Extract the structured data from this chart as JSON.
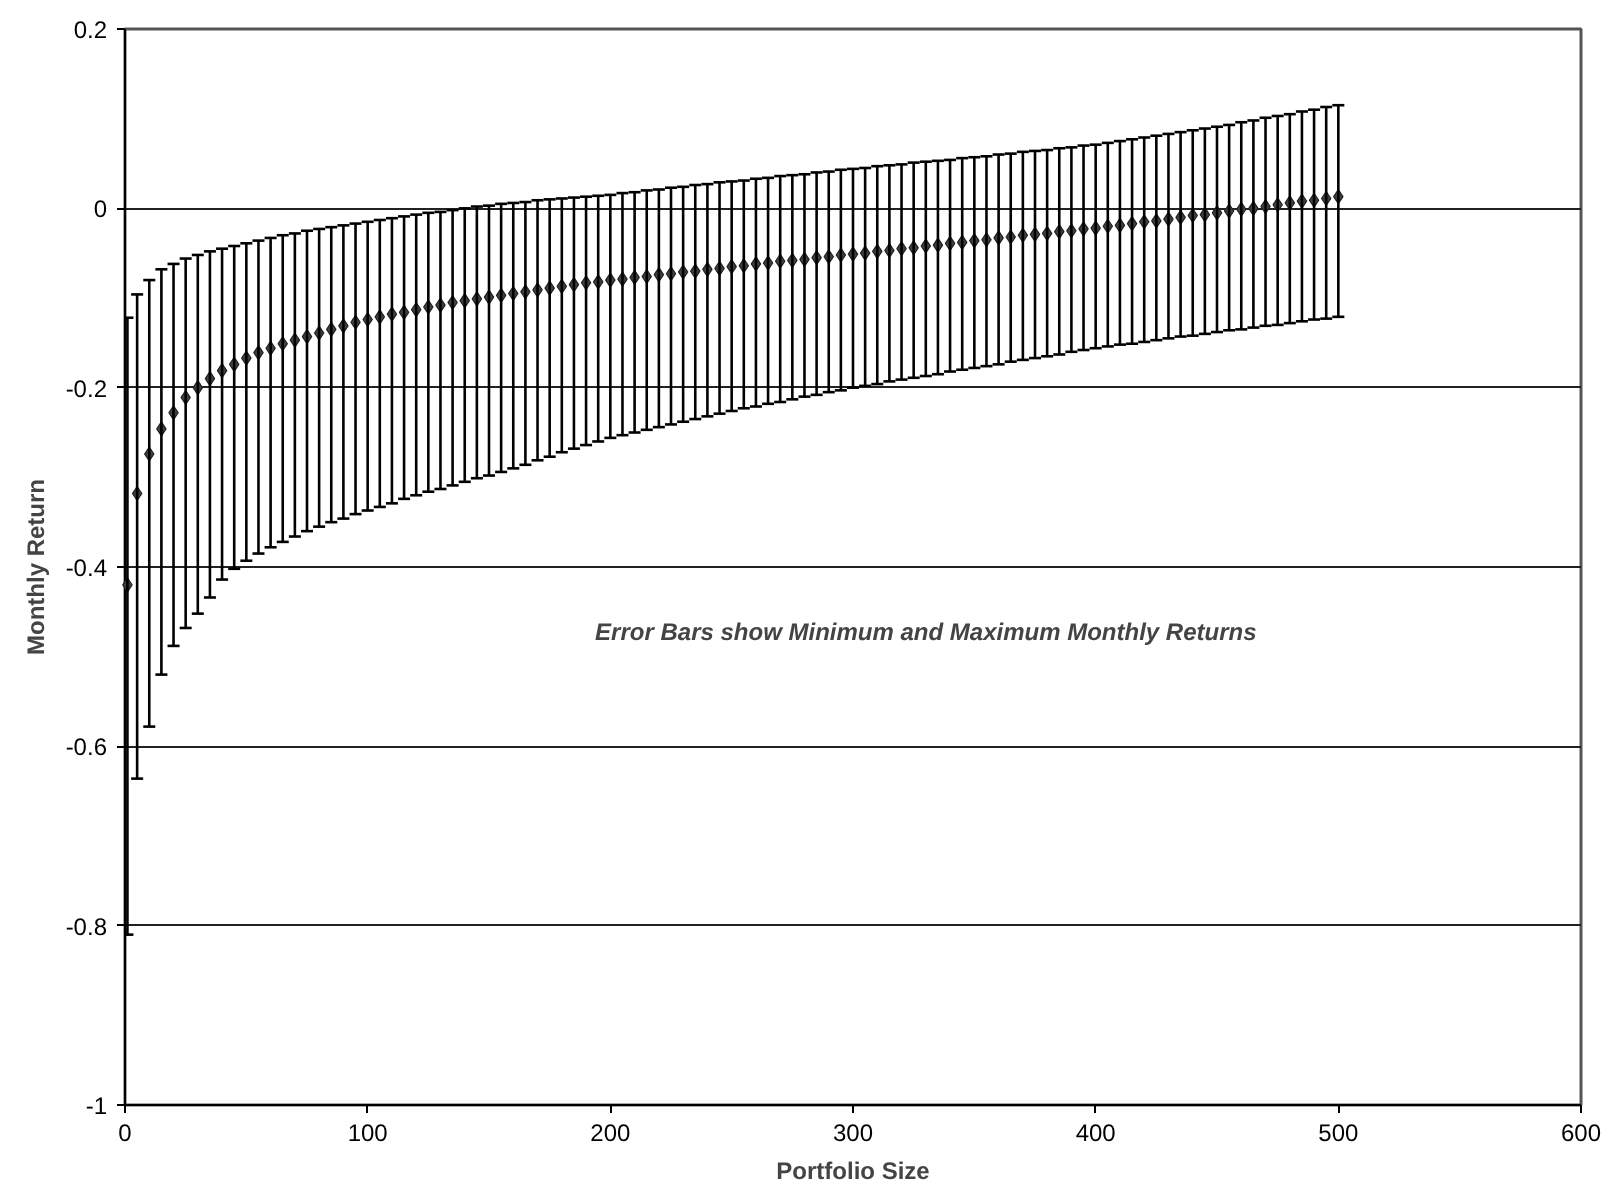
{
  "chart_data": {
    "type": "scatter",
    "xlabel": "Portfolio Size",
    "ylabel": "Monthly Return",
    "annotations": [
      "Error Bars show Minimum and Maximum Monthly Returns"
    ],
    "x": [
      1,
      5,
      10,
      15,
      20,
      25,
      30,
      35,
      40,
      45,
      50,
      55,
      60,
      65,
      70,
      75,
      80,
      85,
      90,
      95,
      100,
      105,
      110,
      115,
      120,
      125,
      130,
      135,
      140,
      145,
      150,
      155,
      160,
      165,
      170,
      175,
      180,
      185,
      190,
      195,
      200,
      205,
      210,
      215,
      220,
      225,
      230,
      235,
      240,
      245,
      250,
      255,
      260,
      265,
      270,
      275,
      280,
      285,
      290,
      295,
      300,
      305,
      310,
      315,
      320,
      325,
      330,
      335,
      340,
      345,
      350,
      355,
      360,
      365,
      370,
      375,
      380,
      385,
      390,
      395,
      400,
      405,
      410,
      415,
      420,
      425,
      430,
      435,
      440,
      445,
      450,
      455,
      460,
      465,
      470,
      475,
      480,
      485,
      490,
      495,
      500
    ],
    "series": [
      {
        "color": "#404040",
        "values": [
          -0.42,
          -0.318,
          -0.274,
          -0.246,
          -0.228,
          -0.211,
          -0.2,
          -0.19,
          -0.181,
          -0.174,
          -0.167,
          -0.161,
          -0.156,
          -0.151,
          -0.147,
          -0.143,
          -0.139,
          -0.135,
          -0.131,
          -0.127,
          -0.124,
          -0.121,
          -0.118,
          -0.116,
          -0.113,
          -0.11,
          -0.108,
          -0.105,
          -0.103,
          -0.101,
          -0.099,
          -0.097,
          -0.095,
          -0.093,
          -0.091,
          -0.089,
          -0.087,
          -0.085,
          -0.083,
          -0.082,
          -0.08,
          -0.079,
          -0.077,
          -0.076,
          -0.074,
          -0.073,
          -0.071,
          -0.07,
          -0.068,
          -0.067,
          -0.065,
          -0.064,
          -0.062,
          -0.061,
          -0.059,
          -0.058,
          -0.057,
          -0.055,
          -0.054,
          -0.052,
          -0.051,
          -0.05,
          -0.048,
          -0.047,
          -0.045,
          -0.044,
          -0.042,
          -0.041,
          -0.039,
          -0.038,
          -0.036,
          -0.035,
          -0.033,
          -0.032,
          -0.03,
          -0.029,
          -0.028,
          -0.026,
          -0.025,
          -0.023,
          -0.022,
          -0.02,
          -0.019,
          -0.017,
          -0.015,
          -0.014,
          -0.012,
          -0.01,
          -0.008,
          -0.007,
          -0.005,
          -0.003,
          -0.001,
          0.0,
          0.002,
          0.004,
          0.006,
          0.008,
          0.009,
          0.011,
          0.013
        ],
        "errors": [
          [
            -0.81,
            -0.122
          ],
          [
            -0.636,
            -0.096
          ],
          [
            -0.578,
            -0.08
          ],
          [
            -0.52,
            -0.068
          ],
          [
            -0.488,
            -0.062
          ],
          [
            -0.468,
            -0.056
          ],
          [
            -0.452,
            -0.052
          ],
          [
            -0.434,
            -0.048
          ],
          [
            -0.414,
            -0.045
          ],
          [
            -0.402,
            -0.042
          ],
          [
            -0.393,
            -0.039
          ],
          [
            -0.385,
            -0.036
          ],
          [
            -0.378,
            -0.033
          ],
          [
            -0.372,
            -0.03
          ],
          [
            -0.366,
            -0.028
          ],
          [
            -0.36,
            -0.025
          ],
          [
            -0.355,
            -0.023
          ],
          [
            -0.35,
            -0.021
          ],
          [
            -0.346,
            -0.019
          ],
          [
            -0.341,
            -0.017
          ],
          [
            -0.337,
            -0.015
          ],
          [
            -0.333,
            -0.013
          ],
          [
            -0.329,
            -0.011
          ],
          [
            -0.324,
            -0.009
          ],
          [
            -0.32,
            -0.007
          ],
          [
            -0.316,
            -0.005
          ],
          [
            -0.313,
            -0.004
          ],
          [
            -0.309,
            -0.002
          ],
          [
            -0.305,
            0.0
          ],
          [
            -0.301,
            0.002
          ],
          [
            -0.298,
            0.003
          ],
          [
            -0.294,
            0.005
          ],
          [
            -0.29,
            0.006
          ],
          [
            -0.286,
            0.007
          ],
          [
            -0.281,
            0.009
          ],
          [
            -0.277,
            0.01
          ],
          [
            -0.272,
            0.011
          ],
          [
            -0.268,
            0.012
          ],
          [
            -0.264,
            0.013
          ],
          [
            -0.26,
            0.014
          ],
          [
            -0.256,
            0.015
          ],
          [
            -0.253,
            0.017
          ],
          [
            -0.25,
            0.018
          ],
          [
            -0.247,
            0.02
          ],
          [
            -0.244,
            0.021
          ],
          [
            -0.241,
            0.023
          ],
          [
            -0.238,
            0.024
          ],
          [
            -0.235,
            0.026
          ],
          [
            -0.232,
            0.027
          ],
          [
            -0.229,
            0.029
          ],
          [
            -0.226,
            0.03
          ],
          [
            -0.223,
            0.031
          ],
          [
            -0.221,
            0.033
          ],
          [
            -0.218,
            0.034
          ],
          [
            -0.216,
            0.036
          ],
          [
            -0.213,
            0.037
          ],
          [
            -0.21,
            0.038
          ],
          [
            -0.208,
            0.04
          ],
          [
            -0.205,
            0.041
          ],
          [
            -0.203,
            0.043
          ],
          [
            -0.2,
            0.044
          ],
          [
            -0.198,
            0.045
          ],
          [
            -0.196,
            0.047
          ],
          [
            -0.193,
            0.048
          ],
          [
            -0.191,
            0.049
          ],
          [
            -0.189,
            0.051
          ],
          [
            -0.187,
            0.052
          ],
          [
            -0.185,
            0.053
          ],
          [
            -0.182,
            0.054
          ],
          [
            -0.18,
            0.056
          ],
          [
            -0.178,
            0.057
          ],
          [
            -0.176,
            0.058
          ],
          [
            -0.174,
            0.06
          ],
          [
            -0.171,
            0.061
          ],
          [
            -0.169,
            0.063
          ],
          [
            -0.167,
            0.064
          ],
          [
            -0.165,
            0.065
          ],
          [
            -0.163,
            0.067
          ],
          [
            -0.16,
            0.068
          ],
          [
            -0.158,
            0.07
          ],
          [
            -0.156,
            0.071
          ],
          [
            -0.154,
            0.073
          ],
          [
            -0.152,
            0.075
          ],
          [
            -0.151,
            0.077
          ],
          [
            -0.149,
            0.079
          ],
          [
            -0.147,
            0.081
          ],
          [
            -0.145,
            0.083
          ],
          [
            -0.143,
            0.085
          ],
          [
            -0.142,
            0.087
          ],
          [
            -0.14,
            0.089
          ],
          [
            -0.138,
            0.091
          ],
          [
            -0.136,
            0.093
          ],
          [
            -0.135,
            0.096
          ],
          [
            -0.133,
            0.098
          ],
          [
            -0.131,
            0.101
          ],
          [
            -0.13,
            0.103
          ],
          [
            -0.128,
            0.105
          ],
          [
            -0.126,
            0.108
          ],
          [
            -0.124,
            0.11
          ],
          [
            -0.123,
            0.113
          ],
          [
            -0.121,
            0.115
          ]
        ]
      }
    ],
    "xlim": [
      0,
      600
    ],
    "xticks": [
      0,
      100,
      200,
      300,
      400,
      500,
      600
    ],
    "ylim": [
      -1,
      0.2
    ],
    "yticks": [
      -1,
      -0.8,
      -0.6,
      -0.4,
      -0.2,
      0,
      0.2
    ],
    "grid": "y",
    "marker": "diamond"
  }
}
